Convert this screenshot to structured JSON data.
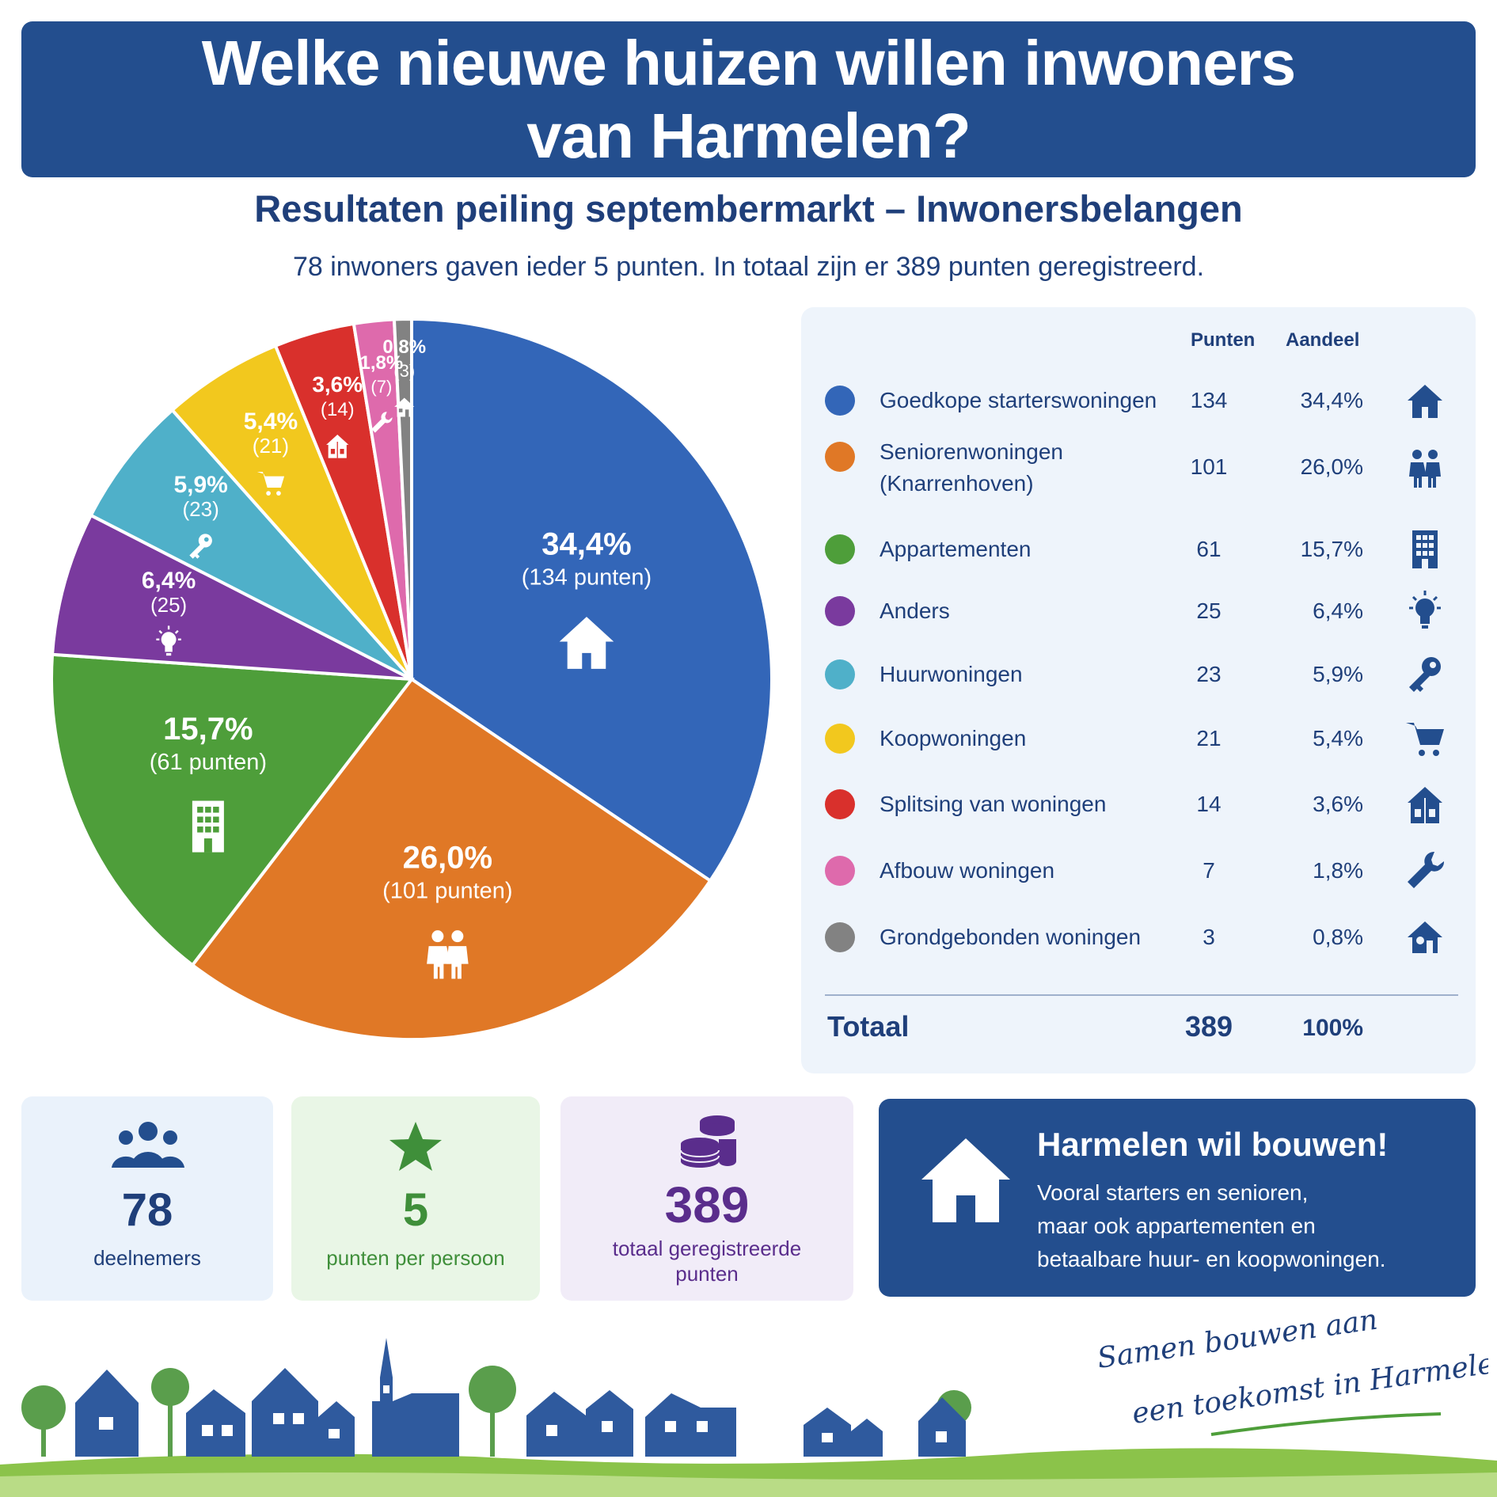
{
  "header": {
    "title_line1": "Welke nieuwe huizen willen inwoners",
    "title_line2": "van Harmelen?",
    "subtitle": "Resultaten peiling septembermarkt – Inwonersbelangen",
    "intro": "78 inwoners gaven ieder 5 punten. In totaal zijn er 389 punten geregistreerd."
  },
  "chart_data": {
    "type": "pie",
    "total": 389,
    "slices": [
      {
        "name": "Goedkope starterswoningen",
        "points": 134,
        "share": 34.4,
        "pct_label": "34,4%",
        "points_label": "(134 punten)",
        "color": "#3366b8",
        "icon": "house-icon"
      },
      {
        "name": "Seniorenwoningen (Knarrenhoven)",
        "points": 101,
        "share": 26.0,
        "pct_label": "26,0%",
        "points_label": "(101 punten)",
        "color": "#e07826",
        "icon": "couple-icon"
      },
      {
        "name": "Appartementen",
        "points": 61,
        "share": 15.7,
        "pct_label": "15,7%",
        "points_label": "(61 punten)",
        "color": "#4e9e3a",
        "icon": "building-icon"
      },
      {
        "name": "Anders",
        "points": 25,
        "share": 6.4,
        "pct_label": "6,4%",
        "points_label": "(25)",
        "color": "#7a3a9e",
        "icon": "lightbulb-icon"
      },
      {
        "name": "Huurwoningen",
        "points": 23,
        "share": 5.9,
        "pct_label": "5,9%",
        "points_label": "(23)",
        "color": "#4fb0c9",
        "icon": "key-icon"
      },
      {
        "name": "Koopwoningen",
        "points": 21,
        "share": 5.4,
        "pct_label": "5,4%",
        "points_label": "(21)",
        "color": "#f2c81e",
        "icon": "cart-icon"
      },
      {
        "name": "Splitsing van woningen",
        "points": 14,
        "share": 3.6,
        "pct_label": "3,6%",
        "points_label": "(14)",
        "color": "#d9302c",
        "icon": "split-house-icon"
      },
      {
        "name": "Afbouw woningen",
        "points": 7,
        "share": 1.8,
        "pct_label": "1,8%",
        "points_label": "(7)",
        "color": "#de6aac",
        "icon": "wrench-icon"
      },
      {
        "name": "Grondgebonden woningen",
        "points": 3,
        "share": 0.8,
        "pct_label": "0,8%",
        "points_label": "(3)",
        "color": "#828282",
        "icon": "small-house-icon"
      }
    ]
  },
  "legend": {
    "col_points": "Punten",
    "col_share": "Aandeel",
    "rows": [
      {
        "name": "Goedkope starterswoningen",
        "points": "134",
        "share": "34,4%"
      },
      {
        "name_line1": "Seniorenwoningen",
        "name_line2": "(Knarrenhoven)",
        "points": "101",
        "share": "26,0%"
      },
      {
        "name": "Appartementen",
        "points": "61",
        "share": "15,7%"
      },
      {
        "name": "Anders",
        "points": "25",
        "share": "6,4%"
      },
      {
        "name": "Huurwoningen",
        "points": "23",
        "share": "5,9%"
      },
      {
        "name": "Koopwoningen",
        "points": "21",
        "share": "5,4%"
      },
      {
        "name": "Splitsing van woningen",
        "points": "14",
        "share": "3,6%"
      },
      {
        "name": "Afbouw woningen",
        "points": "7",
        "share": "1,8%"
      },
      {
        "name": "Grondgebonden woningen",
        "points": "3",
        "share": "0,8%"
      }
    ],
    "total_label": "Totaal",
    "total_points": "389",
    "total_share": "100%"
  },
  "stats": [
    {
      "value": "78",
      "label": "deelnemers",
      "color": "#1f3f7a",
      "bg": "#eaf2fb",
      "icon": "people-icon"
    },
    {
      "value": "5",
      "label": "punten per persoon",
      "color": "#3f8f3a",
      "bg": "#e9f6e6",
      "icon": "star-icon"
    },
    {
      "value": "389",
      "label_line1": "totaal geregistreerde",
      "label_line2": "punten",
      "color": "#5a2d8c",
      "bg": "#f1ecf8",
      "icon": "coins-icon"
    }
  ],
  "banner": {
    "title": "Harmelen wil bouwen!",
    "line1": "Vooral starters en senioren,",
    "line2": "maar ook appartementen en",
    "line3": "betaalbare huur- en koopwoningen."
  },
  "slogan": {
    "line1": "Samen bouwen aan",
    "line2": "een toekomst in Harmelen"
  }
}
